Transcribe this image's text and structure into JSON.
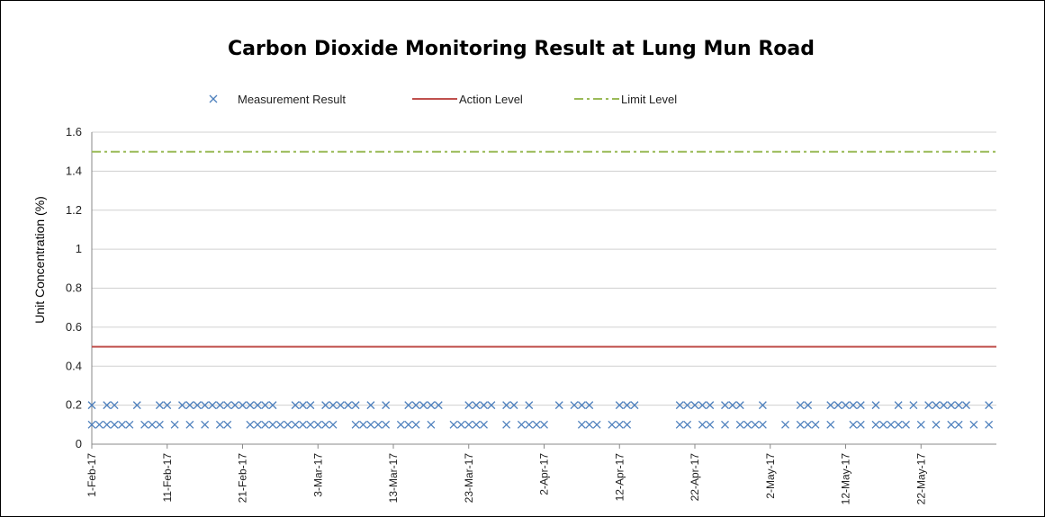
{
  "chart_data": {
    "type": "scatter",
    "title": "Carbon Dioxide Monitoring Result at Lung Mun Road",
    "xlabel": "",
    "ylabel": "Unit Concentration (%)",
    "ylim": [
      0,
      1.6
    ],
    "yticks": [
      "0",
      "0.2",
      "0.4",
      "0.6",
      "0.8",
      "1",
      "1.2",
      "1.4",
      "1.6"
    ],
    "xlim": [
      "1-Feb-17",
      "1-Jun-17"
    ],
    "xticks": [
      "1-Feb-17",
      "11-Feb-17",
      "21-Feb-17",
      "3-Mar-17",
      "13-Mar-17",
      "23-Mar-17",
      "2-Apr-17",
      "12-Apr-17",
      "22-Apr-17",
      "2-May-17",
      "12-May-17",
      "22-May-17"
    ],
    "grid": "horizontal",
    "legend_position": "top",
    "colors": {
      "measurement": "#4f81bd",
      "action": "#c0504d",
      "limit": "#9bbb59",
      "grid": "#d0d0d0"
    },
    "series": [
      {
        "name": "Measurement Result",
        "kind": "marker-x",
        "points": [
          {
            "x": "1-Feb-17",
            "y": 0.2
          },
          {
            "x": "1-Feb-17",
            "y": 0.1
          },
          {
            "x": "2-Feb-17",
            "y": 0.1
          },
          {
            "x": "3-Feb-17",
            "y": 0.2
          },
          {
            "x": "3-Feb-17",
            "y": 0.1
          },
          {
            "x": "4-Feb-17",
            "y": 0.2
          },
          {
            "x": "4-Feb-17",
            "y": 0.1
          },
          {
            "x": "5-Feb-17",
            "y": 0.1
          },
          {
            "x": "6-Feb-17",
            "y": 0.1
          },
          {
            "x": "7-Feb-17",
            "y": 0.2
          },
          {
            "x": "8-Feb-17",
            "y": 0.1
          },
          {
            "x": "9-Feb-17",
            "y": 0.1
          },
          {
            "x": "10-Feb-17",
            "y": 0.2
          },
          {
            "x": "10-Feb-17",
            "y": 0.1
          },
          {
            "x": "11-Feb-17",
            "y": 0.2
          },
          {
            "x": "12-Feb-17",
            "y": 0.1
          },
          {
            "x": "13-Feb-17",
            "y": 0.2
          },
          {
            "x": "14-Feb-17",
            "y": 0.2
          },
          {
            "x": "14-Feb-17",
            "y": 0.1
          },
          {
            "x": "15-Feb-17",
            "y": 0.2
          },
          {
            "x": "16-Feb-17",
            "y": 0.2
          },
          {
            "x": "16-Feb-17",
            "y": 0.1
          },
          {
            "x": "17-Feb-17",
            "y": 0.2
          },
          {
            "x": "18-Feb-17",
            "y": 0.2
          },
          {
            "x": "18-Feb-17",
            "y": 0.1
          },
          {
            "x": "19-Feb-17",
            "y": 0.2
          },
          {
            "x": "19-Feb-17",
            "y": 0.1
          },
          {
            "x": "20-Feb-17",
            "y": 0.2
          },
          {
            "x": "21-Feb-17",
            "y": 0.2
          },
          {
            "x": "22-Feb-17",
            "y": 0.2
          },
          {
            "x": "22-Feb-17",
            "y": 0.1
          },
          {
            "x": "23-Feb-17",
            "y": 0.2
          },
          {
            "x": "23-Feb-17",
            "y": 0.1
          },
          {
            "x": "24-Feb-17",
            "y": 0.2
          },
          {
            "x": "24-Feb-17",
            "y": 0.1
          },
          {
            "x": "25-Feb-17",
            "y": 0.2
          },
          {
            "x": "25-Feb-17",
            "y": 0.1
          },
          {
            "x": "26-Feb-17",
            "y": 0.1
          },
          {
            "x": "27-Feb-17",
            "y": 0.1
          },
          {
            "x": "28-Feb-17",
            "y": 0.2
          },
          {
            "x": "28-Feb-17",
            "y": 0.1
          },
          {
            "x": "1-Mar-17",
            "y": 0.2
          },
          {
            "x": "1-Mar-17",
            "y": 0.1
          },
          {
            "x": "2-Mar-17",
            "y": 0.2
          },
          {
            "x": "2-Mar-17",
            "y": 0.1
          },
          {
            "x": "3-Mar-17",
            "y": 0.1
          },
          {
            "x": "4-Mar-17",
            "y": 0.2
          },
          {
            "x": "4-Mar-17",
            "y": 0.1
          },
          {
            "x": "5-Mar-17",
            "y": 0.2
          },
          {
            "x": "5-Mar-17",
            "y": 0.1
          },
          {
            "x": "6-Mar-17",
            "y": 0.2
          },
          {
            "x": "7-Mar-17",
            "y": 0.2
          },
          {
            "x": "8-Mar-17",
            "y": 0.2
          },
          {
            "x": "8-Mar-17",
            "y": 0.1
          },
          {
            "x": "9-Mar-17",
            "y": 0.1
          },
          {
            "x": "10-Mar-17",
            "y": 0.2
          },
          {
            "x": "10-Mar-17",
            "y": 0.1
          },
          {
            "x": "11-Mar-17",
            "y": 0.1
          },
          {
            "x": "12-Mar-17",
            "y": 0.2
          },
          {
            "x": "12-Mar-17",
            "y": 0.1
          },
          {
            "x": "14-Mar-17",
            "y": 0.1
          },
          {
            "x": "15-Mar-17",
            "y": 0.2
          },
          {
            "x": "15-Mar-17",
            "y": 0.1
          },
          {
            "x": "16-Mar-17",
            "y": 0.2
          },
          {
            "x": "16-Mar-17",
            "y": 0.1
          },
          {
            "x": "17-Mar-17",
            "y": 0.2
          },
          {
            "x": "18-Mar-17",
            "y": 0.2
          },
          {
            "x": "18-Mar-17",
            "y": 0.1
          },
          {
            "x": "19-Mar-17",
            "y": 0.2
          },
          {
            "x": "21-Mar-17",
            "y": 0.1
          },
          {
            "x": "22-Mar-17",
            "y": 0.1
          },
          {
            "x": "23-Mar-17",
            "y": 0.2
          },
          {
            "x": "23-Mar-17",
            "y": 0.1
          },
          {
            "x": "24-Mar-17",
            "y": 0.2
          },
          {
            "x": "24-Mar-17",
            "y": 0.1
          },
          {
            "x": "25-Mar-17",
            "y": 0.2
          },
          {
            "x": "25-Mar-17",
            "y": 0.1
          },
          {
            "x": "26-Mar-17",
            "y": 0.2
          },
          {
            "x": "28-Mar-17",
            "y": 0.2
          },
          {
            "x": "28-Mar-17",
            "y": 0.1
          },
          {
            "x": "29-Mar-17",
            "y": 0.2
          },
          {
            "x": "30-Mar-17",
            "y": 0.1
          },
          {
            "x": "31-Mar-17",
            "y": 0.2
          },
          {
            "x": "31-Mar-17",
            "y": 0.1
          },
          {
            "x": "1-Apr-17",
            "y": 0.1
          },
          {
            "x": "2-Apr-17",
            "y": 0.1
          },
          {
            "x": "4-Apr-17",
            "y": 0.2
          },
          {
            "x": "6-Apr-17",
            "y": 0.2
          },
          {
            "x": "7-Apr-17",
            "y": 0.2
          },
          {
            "x": "7-Apr-17",
            "y": 0.1
          },
          {
            "x": "8-Apr-17",
            "y": 0.2
          },
          {
            "x": "8-Apr-17",
            "y": 0.1
          },
          {
            "x": "9-Apr-17",
            "y": 0.1
          },
          {
            "x": "11-Apr-17",
            "y": 0.1
          },
          {
            "x": "12-Apr-17",
            "y": 0.2
          },
          {
            "x": "12-Apr-17",
            "y": 0.1
          },
          {
            "x": "13-Apr-17",
            "y": 0.2
          },
          {
            "x": "13-Apr-17",
            "y": 0.1
          },
          {
            "x": "14-Apr-17",
            "y": 0.2
          },
          {
            "x": "20-Apr-17",
            "y": 0.2
          },
          {
            "x": "20-Apr-17",
            "y": 0.1
          },
          {
            "x": "21-Apr-17",
            "y": 0.2
          },
          {
            "x": "21-Apr-17",
            "y": 0.1
          },
          {
            "x": "22-Apr-17",
            "y": 0.2
          },
          {
            "x": "23-Apr-17",
            "y": 0.2
          },
          {
            "x": "23-Apr-17",
            "y": 0.1
          },
          {
            "x": "24-Apr-17",
            "y": 0.2
          },
          {
            "x": "24-Apr-17",
            "y": 0.1
          },
          {
            "x": "26-Apr-17",
            "y": 0.2
          },
          {
            "x": "26-Apr-17",
            "y": 0.1
          },
          {
            "x": "27-Apr-17",
            "y": 0.2
          },
          {
            "x": "28-Apr-17",
            "y": 0.2
          },
          {
            "x": "28-Apr-17",
            "y": 0.1
          },
          {
            "x": "29-Apr-17",
            "y": 0.1
          },
          {
            "x": "30-Apr-17",
            "y": 0.1
          },
          {
            "x": "1-May-17",
            "y": 0.2
          },
          {
            "x": "1-May-17",
            "y": 0.1
          },
          {
            "x": "4-May-17",
            "y": 0.1
          },
          {
            "x": "6-May-17",
            "y": 0.2
          },
          {
            "x": "6-May-17",
            "y": 0.1
          },
          {
            "x": "7-May-17",
            "y": 0.2
          },
          {
            "x": "7-May-17",
            "y": 0.1
          },
          {
            "x": "8-May-17",
            "y": 0.1
          },
          {
            "x": "10-May-17",
            "y": 0.2
          },
          {
            "x": "10-May-17",
            "y": 0.1
          },
          {
            "x": "11-May-17",
            "y": 0.2
          },
          {
            "x": "12-May-17",
            "y": 0.2
          },
          {
            "x": "13-May-17",
            "y": 0.2
          },
          {
            "x": "13-May-17",
            "y": 0.1
          },
          {
            "x": "14-May-17",
            "y": 0.2
          },
          {
            "x": "14-May-17",
            "y": 0.1
          },
          {
            "x": "16-May-17",
            "y": 0.2
          },
          {
            "x": "16-May-17",
            "y": 0.1
          },
          {
            "x": "17-May-17",
            "y": 0.1
          },
          {
            "x": "18-May-17",
            "y": 0.1
          },
          {
            "x": "19-May-17",
            "y": 0.2
          },
          {
            "x": "19-May-17",
            "y": 0.1
          },
          {
            "x": "20-May-17",
            "y": 0.1
          },
          {
            "x": "21-May-17",
            "y": 0.2
          },
          {
            "x": "22-May-17",
            "y": 0.1
          },
          {
            "x": "23-May-17",
            "y": 0.2
          },
          {
            "x": "24-May-17",
            "y": 0.2
          },
          {
            "x": "24-May-17",
            "y": 0.1
          },
          {
            "x": "25-May-17",
            "y": 0.2
          },
          {
            "x": "26-May-17",
            "y": 0.2
          },
          {
            "x": "26-May-17",
            "y": 0.1
          },
          {
            "x": "27-May-17",
            "y": 0.2
          },
          {
            "x": "27-May-17",
            "y": 0.1
          },
          {
            "x": "28-May-17",
            "y": 0.2
          },
          {
            "x": "29-May-17",
            "y": 0.1
          },
          {
            "x": "31-May-17",
            "y": 0.2
          },
          {
            "x": "31-May-17",
            "y": 0.1
          }
        ]
      },
      {
        "name": "Action Level",
        "kind": "line-solid",
        "y": 0.5
      },
      {
        "name": "Limit Level",
        "kind": "line-dashdot",
        "y": 1.5
      }
    ]
  }
}
